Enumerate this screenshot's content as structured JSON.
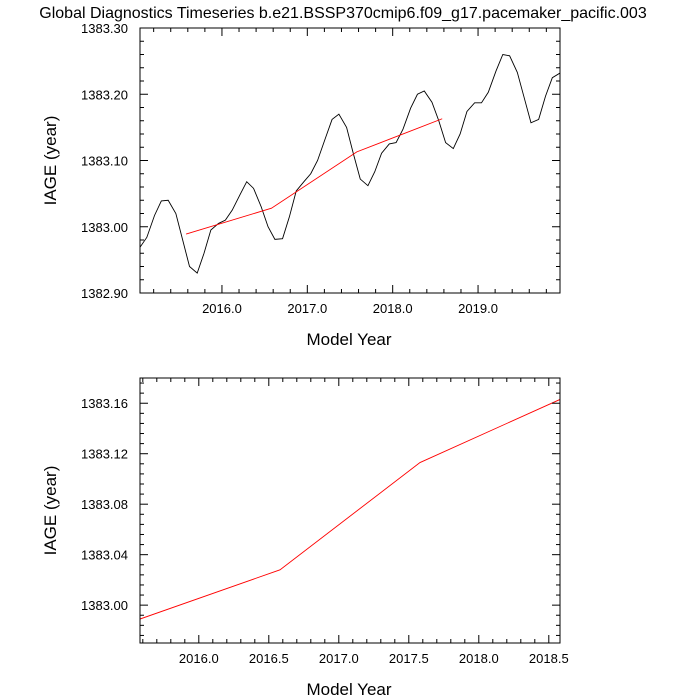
{
  "title": "Global Diagnostics Timeseries b.e21.BSSP370cmip6.f09_g17.pacemaker_pacific.003",
  "colors": {
    "monthly_line": "#000000",
    "annual_line": "#ff0000",
    "frame": "#000000"
  },
  "chart_data": [
    {
      "type": "line",
      "xlabel": "Model Year",
      "ylabel": "IAGE (year)",
      "xlim": [
        2015.04,
        2019.96
      ],
      "ylim": [
        1382.9,
        1383.3
      ],
      "xticks": [
        2016.0,
        2017.0,
        2018.0,
        2019.0
      ],
      "xtick_labels": [
        "2016.0",
        "2017.0",
        "2018.0",
        "2019.0"
      ],
      "yticks": [
        1382.9,
        1383.0,
        1383.1,
        1383.2,
        1383.3
      ],
      "ytick_labels": [
        "1382.90",
        "1383.00",
        "1383.10",
        "1383.20",
        "1383.30"
      ],
      "series": [
        {
          "color": "#000000",
          "x": [
            2015.04,
            2015.12,
            2015.21,
            2015.29,
            2015.37,
            2015.46,
            2015.54,
            2015.62,
            2015.71,
            2015.79,
            2015.87,
            2015.96,
            2016.04,
            2016.12,
            2016.21,
            2016.29,
            2016.37,
            2016.46,
            2016.54,
            2016.62,
            2016.71,
            2016.79,
            2016.87,
            2016.96,
            2017.04,
            2017.12,
            2017.21,
            2017.29,
            2017.37,
            2017.46,
            2017.54,
            2017.62,
            2017.71,
            2017.79,
            2017.87,
            2017.96,
            2018.04,
            2018.12,
            2018.21,
            2018.29,
            2018.37,
            2018.46,
            2018.54,
            2018.62,
            2018.71,
            2018.79,
            2018.87,
            2018.96,
            2019.04,
            2019.12,
            2019.21,
            2019.29,
            2019.37,
            2019.46,
            2019.54,
            2019.62,
            2019.71,
            2019.79,
            2019.87,
            2019.96
          ],
          "y": [
            1382.969,
            1382.984,
            1383.017,
            1383.039,
            1383.04,
            1383.02,
            1382.98,
            1382.94,
            1382.93,
            1382.96,
            1382.995,
            1383.005,
            1383.01,
            1383.025,
            1383.048,
            1383.068,
            1383.058,
            1383.03,
            1383.0,
            1382.981,
            1382.982,
            1383.015,
            1383.054,
            1383.068,
            1383.08,
            1383.1,
            1383.133,
            1383.162,
            1383.17,
            1383.15,
            1383.11,
            1383.072,
            1383.062,
            1383.083,
            1383.111,
            1383.125,
            1383.127,
            1383.147,
            1383.179,
            1383.2,
            1383.205,
            1383.188,
            1383.16,
            1383.127,
            1383.118,
            1383.14,
            1383.174,
            1383.187,
            1383.187,
            1383.203,
            1383.235,
            1383.26,
            1383.258,
            1383.233,
            1383.195,
            1383.157,
            1383.162,
            1383.197,
            1383.225,
            1383.232
          ]
        },
        {
          "color": "#ff0000",
          "x": [
            2015.58,
            2016.58,
            2017.58,
            2018.58
          ],
          "y": [
            1382.989,
            1383.028,
            1383.113,
            1383.163
          ]
        }
      ]
    },
    {
      "type": "line",
      "xlabel": "Model Year",
      "ylabel": "IAGE (year)",
      "xlim": [
        2015.58,
        2018.58
      ],
      "ylim": [
        1382.97,
        1383.18
      ],
      "xticks": [
        2016.0,
        2016.5,
        2017.0,
        2017.5,
        2018.0,
        2018.5
      ],
      "xtick_labels": [
        "2016.0",
        "2016.5",
        "2017.0",
        "2017.5",
        "2018.0",
        "2018.5"
      ],
      "yticks": [
        1383.0,
        1383.04,
        1383.08,
        1383.12,
        1383.16
      ],
      "ytick_labels": [
        "1383.00",
        "1383.04",
        "1383.08",
        "1383.12",
        "1383.16"
      ],
      "series": [
        {
          "color": "#ff0000",
          "x": [
            2015.58,
            2016.58,
            2017.58,
            2018.58
          ],
          "y": [
            1382.989,
            1383.028,
            1383.113,
            1383.163
          ]
        }
      ]
    }
  ]
}
